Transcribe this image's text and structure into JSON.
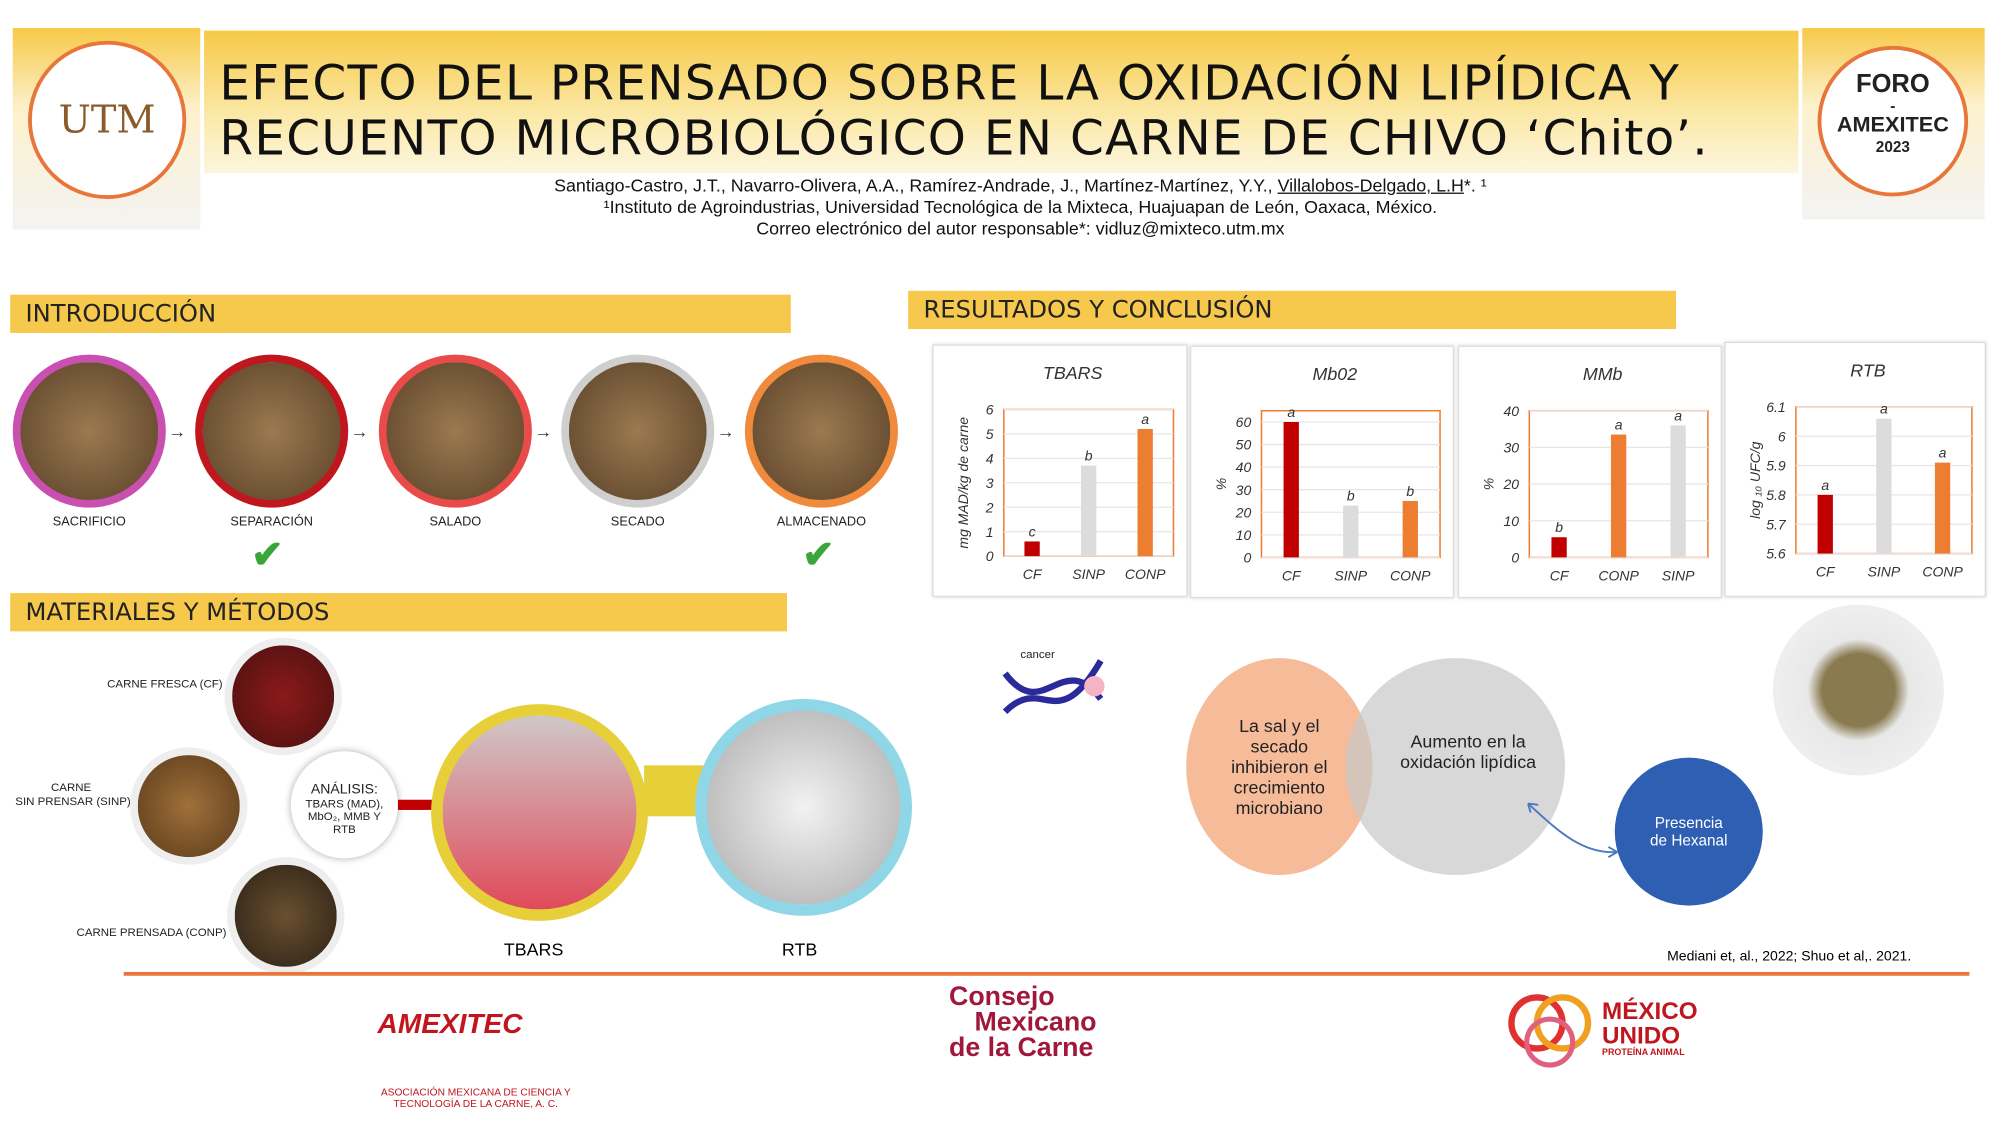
{
  "header": {
    "title_line1": "EFECTO DEL PRENSADO SOBRE LA OXIDACIÓN LIPÍDICA Y",
    "title_line2": "RECUENTO MICROBIOLÓGICO EN CARNE DE CHIVO ‘Chito’.",
    "authors": "Santiago-Castro, J.T., Navarro-Olivera, A.A., Ramírez-Andrade, J., Martínez-Martínez, Y.Y., ",
    "author_corresponding": "Villalobos-Delgado, L.H",
    "author_suffix": "*. ¹",
    "affiliation": "¹Instituto de Agroindustrias, Universidad Tecnológica de la Mixteca, Huajuapan  de León, Oaxaca, México.",
    "email": "Correo electrónico del autor responsable*: vidluz@mixteco.utm.mx",
    "left_logo": "UNIVERSIDAD TECNOLÓGICA DE LA MIXTECA · OAXACA",
    "right_logo": {
      "line1": "FORO",
      "line2": "-",
      "line3": "AMEXITEC",
      "line4": "2023"
    }
  },
  "intro": {
    "heading": "INTRODUCCIÓN",
    "steps": [
      {
        "label": "SACRIFICIO",
        "color": "#c94fb0"
      },
      {
        "label": "SEPARACIÓN",
        "color": "#c0161d"
      },
      {
        "label": "SALADO",
        "color": "#e94b4b"
      },
      {
        "label": "SECADO",
        "color": "#cfcfcf"
      },
      {
        "label": "ALMACENADO",
        "color": "#f08a3c"
      }
    ]
  },
  "methods": {
    "heading": "MATERIALES Y MÉTODOS",
    "samples": [
      "CARNE FRESCA (CF)",
      "CARNE",
      "SIN PRENSAR (SINP)",
      "CARNE PRENSADA (CONP)"
    ],
    "analysis_title": "ANÁLISIS:",
    "analysis_items": "TBARS (MAD), MbO₂, MMB Y RTB",
    "tbars_label": "TBARS",
    "rtb_label": "RTB"
  },
  "results": {
    "heading": "RESULTADOS Y CONCLUSIÓN",
    "venn_left": "La sal y el secado inhibieron el crecimiento microbiano",
    "venn_right": "Aumento en la oxidación lipídica",
    "bubble": "Presencia de Hexanal",
    "dna_label": "cancer",
    "reference": "Mediani et, al., 2022;  Shuo et al,. 2021."
  },
  "footer": {
    "amexitec": "AMEXITEC",
    "amexitec_sub1": "ASOCIACIÓN MEXICANA  DE CIENCIA Y",
    "amexitec_sub2": "TECNOLOGÍA DE LA CARNE, A. C.",
    "consejo": [
      "Consejo",
      "Mexicano",
      "de la Carne"
    ],
    "mexico": [
      "MÉXICO",
      "UNIDO",
      "PROTEÍNA ANIMAL"
    ]
  },
  "colors": {
    "accent": "#f6c94c",
    "cf": "#c00000",
    "sinp": "#dcdcdc",
    "conp": "#ed7d31"
  },
  "chart_data": [
    {
      "type": "bar",
      "title": "TBARS",
      "ylabel": "mg MAD/kg de carne",
      "ylim": [
        0,
        6
      ],
      "ticks": [
        "0",
        "1",
        "2",
        "3",
        "4",
        "5",
        "6"
      ],
      "categories": [
        "CF",
        "SINP",
        "CONP"
      ],
      "values": [
        0.6,
        3.7,
        5.2
      ],
      "letters": [
        "c",
        "b",
        "a"
      ]
    },
    {
      "type": "bar",
      "title": "Mb02",
      "ylabel": "%",
      "ylim": [
        0,
        65
      ],
      "ticks": [
        "0",
        "10",
        "20",
        "30",
        "40",
        "50",
        "60"
      ],
      "categories": [
        "CF",
        "SINP",
        "CONP"
      ],
      "values": [
        60,
        23,
        25
      ],
      "letters": [
        "a",
        "b",
        "b"
      ]
    },
    {
      "type": "bar",
      "title": "MMb",
      "ylabel": "%",
      "ylim": [
        0,
        40
      ],
      "ticks": [
        "0",
        "10",
        "20",
        "30",
        "40"
      ],
      "categories": [
        "CF",
        "CONP",
        "SINP"
      ],
      "values": [
        5.5,
        33.5,
        36
      ],
      "letters": [
        "b",
        "a",
        "a"
      ]
    },
    {
      "type": "bar",
      "title": "RTB",
      "ylabel": "log ₁₀ UFC/g",
      "ylim": [
        5.6,
        6.1
      ],
      "ticks": [
        "5.6",
        "5.7",
        "5.8",
        "5.9",
        "6",
        "6.1"
      ],
      "categories": [
        "CF",
        "SINP",
        "CONP"
      ],
      "values": [
        5.8,
        6.06,
        5.91
      ],
      "letters": [
        "a",
        "a",
        "a"
      ]
    }
  ]
}
